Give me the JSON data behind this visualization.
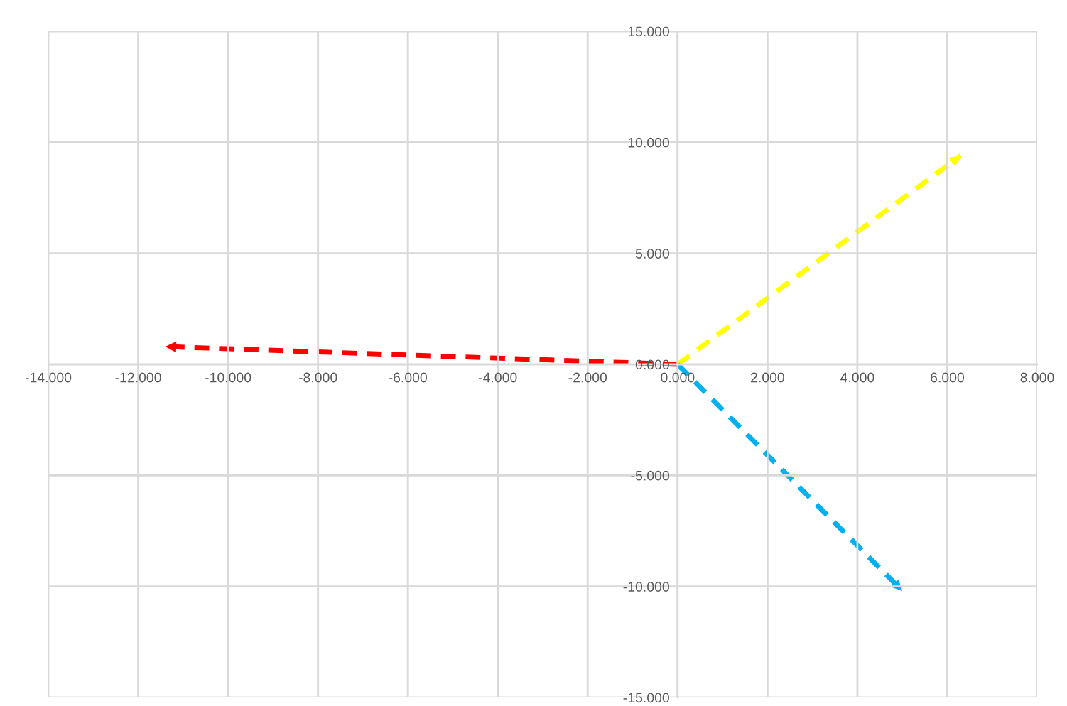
{
  "chart_data": {
    "type": "line",
    "xlim": [
      -14,
      8
    ],
    "ylim": [
      -15,
      15
    ],
    "xticks": [
      {
        "value": -14,
        "label": "-14.000"
      },
      {
        "value": -12,
        "label": "-12.000"
      },
      {
        "value": -10,
        "label": "-10.000"
      },
      {
        "value": -8,
        "label": "-8.000"
      },
      {
        "value": -6,
        "label": "-6.000"
      },
      {
        "value": -4,
        "label": "-4.000"
      },
      {
        "value": -2,
        "label": "-2.000"
      },
      {
        "value": 0,
        "label": "0.000"
      },
      {
        "value": 2,
        "label": "2.000"
      },
      {
        "value": 4,
        "label": "4.000"
      },
      {
        "value": 6,
        "label": "6.000"
      },
      {
        "value": 8,
        "label": "8.000"
      }
    ],
    "yticks": [
      {
        "value": -15,
        "label": "-15.000"
      },
      {
        "value": -10,
        "label": "-10.000"
      },
      {
        "value": -5,
        "label": "-5.000"
      },
      {
        "value": 0,
        "label": "0.000"
      },
      {
        "value": 5,
        "label": "5.000"
      },
      {
        "value": 10,
        "label": "10.000"
      },
      {
        "value": 15,
        "label": "15.000"
      }
    ],
    "grid": true,
    "line_style": "dashed",
    "marker": "none",
    "series": [
      {
        "color": "#ffff00",
        "x": [
          0,
          6.3
        ],
        "values": [
          0,
          9.4
        ]
      },
      {
        "color": "#00b0f0",
        "x": [
          0,
          5.0
        ],
        "values": [
          0,
          -10.2
        ]
      },
      {
        "color": "#ff0000",
        "x": [
          0,
          -11.4
        ],
        "values": [
          0,
          0.8
        ]
      }
    ]
  }
}
